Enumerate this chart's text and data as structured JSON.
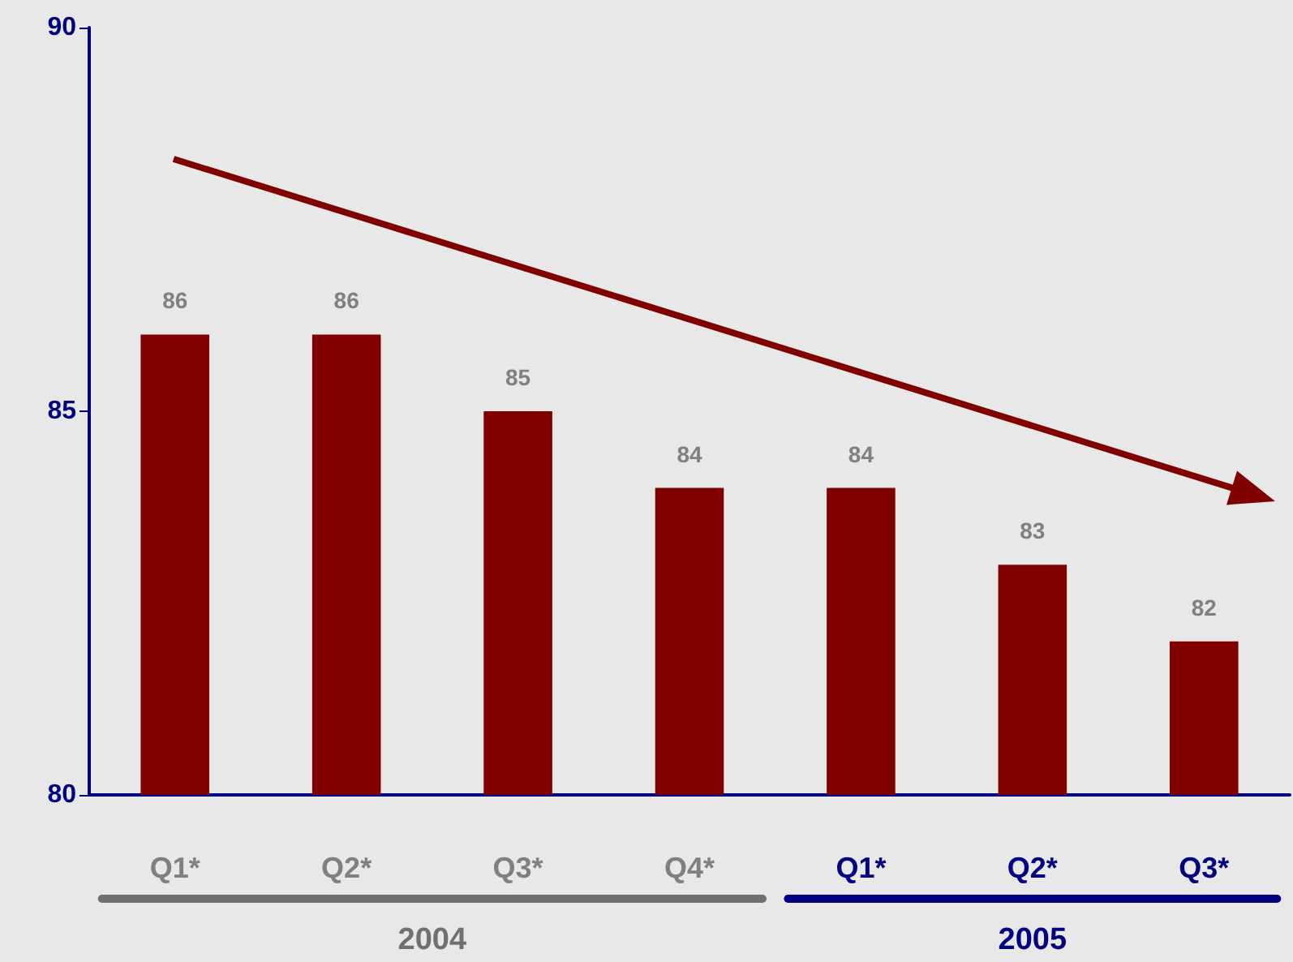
{
  "chart_data": {
    "type": "bar",
    "categories": [
      "Q1*",
      "Q2*",
      "Q3*",
      "Q4*",
      "Q1*",
      "Q2*",
      "Q3*"
    ],
    "values": [
      86,
      86,
      85,
      84,
      84,
      83,
      82
    ],
    "color": "#800000",
    "ylim": [
      80,
      90
    ],
    "yticks": [
      80,
      85,
      90
    ],
    "grid": false,
    "data_labels": true,
    "annotations": [
      "2004",
      "2005"
    ]
  }
}
